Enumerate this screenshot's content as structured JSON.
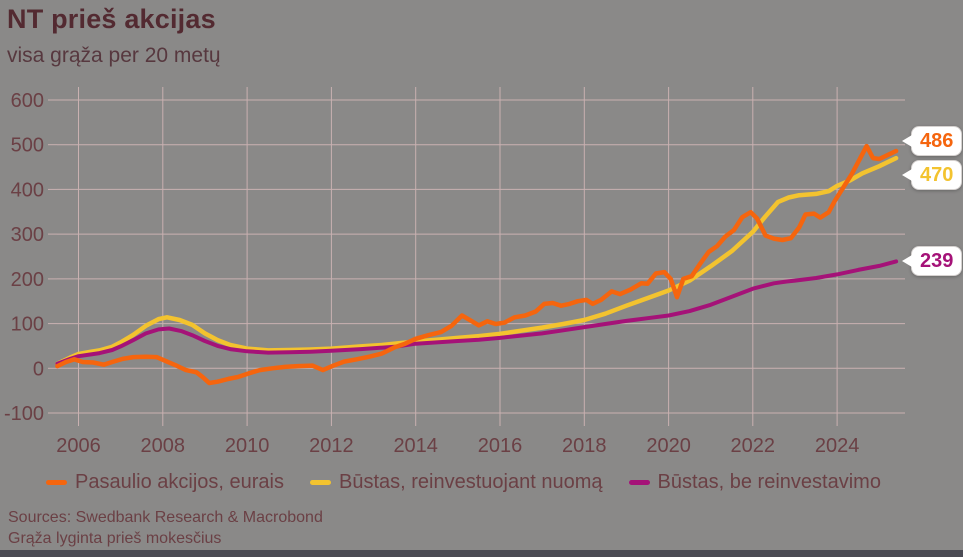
{
  "header": {
    "title": "NT prieš akcijas",
    "subtitle": "visa grąža per 20 metų"
  },
  "colors": {
    "background": "#8a8988",
    "grid": "#c9b1b1",
    "title_text": "#532a31",
    "subtitle_text": "#57383f",
    "axis_text": "#6b4045",
    "footer_bar": "#4b4b54",
    "bubble_bg": "#ffffff",
    "bubble_border": "#d6d2d0",
    "series_equities": "#f5650e",
    "series_housing_reinvest": "#f3c32f",
    "series_housing_no_reinvest": "#a51278"
  },
  "chart_data": {
    "type": "line",
    "title": "NT prieš akcijas",
    "subtitle": "visa grąža per 20 metų",
    "xlabel": "",
    "ylabel": "",
    "xlim": [
      2005.49,
      2025.61
    ],
    "ylim": [
      -100,
      600
    ],
    "x_ticks": [
      2006,
      2008,
      2010,
      2012,
      2014,
      2016,
      2018,
      2020,
      2022,
      2024
    ],
    "y_ticks": [
      -100,
      0,
      100,
      200,
      300,
      400,
      500,
      600
    ],
    "grid": true,
    "legend_position": "bottom",
    "series": [
      {
        "name": "Pasaulio akcijos, eurais",
        "color_key": "series_equities",
        "end_label": "486",
        "points": [
          [
            2005.5,
            5
          ],
          [
            2005.7,
            14
          ],
          [
            2005.9,
            20
          ],
          [
            2006.1,
            14
          ],
          [
            2006.35,
            13
          ],
          [
            2006.6,
            8
          ],
          [
            2006.8,
            14
          ],
          [
            2007.05,
            21
          ],
          [
            2007.3,
            25
          ],
          [
            2007.6,
            26
          ],
          [
            2007.85,
            25
          ],
          [
            2008.1,
            15
          ],
          [
            2008.35,
            5
          ],
          [
            2008.55,
            -4
          ],
          [
            2008.8,
            -9
          ],
          [
            2008.95,
            -20
          ],
          [
            2009.1,
            -33
          ],
          [
            2009.3,
            -30
          ],
          [
            2009.55,
            -24
          ],
          [
            2009.8,
            -19
          ],
          [
            2010.05,
            -11
          ],
          [
            2010.3,
            -4
          ],
          [
            2010.6,
            0
          ],
          [
            2010.9,
            3
          ],
          [
            2011.2,
            5
          ],
          [
            2011.55,
            6
          ],
          [
            2011.8,
            -4
          ],
          [
            2012.05,
            6
          ],
          [
            2012.3,
            15
          ],
          [
            2012.6,
            20
          ],
          [
            2012.9,
            26
          ],
          [
            2013.2,
            33
          ],
          [
            2013.5,
            47
          ],
          [
            2013.75,
            55
          ],
          [
            2014.0,
            66
          ],
          [
            2014.3,
            74
          ],
          [
            2014.6,
            81
          ],
          [
            2014.85,
            95
          ],
          [
            2015.1,
            118
          ],
          [
            2015.3,
            107
          ],
          [
            2015.5,
            96
          ],
          [
            2015.7,
            105
          ],
          [
            2015.9,
            99
          ],
          [
            2016.1,
            102
          ],
          [
            2016.35,
            114
          ],
          [
            2016.6,
            118
          ],
          [
            2016.85,
            127
          ],
          [
            2017.05,
            144
          ],
          [
            2017.25,
            146
          ],
          [
            2017.45,
            140
          ],
          [
            2017.65,
            144
          ],
          [
            2017.85,
            150
          ],
          [
            2018.05,
            153
          ],
          [
            2018.2,
            144
          ],
          [
            2018.4,
            153
          ],
          [
            2018.65,
            172
          ],
          [
            2018.85,
            166
          ],
          [
            2019.1,
            176
          ],
          [
            2019.35,
            190
          ],
          [
            2019.5,
            189
          ],
          [
            2019.7,
            212
          ],
          [
            2019.9,
            215
          ],
          [
            2020.05,
            200
          ],
          [
            2020.2,
            159
          ],
          [
            2020.35,
            200
          ],
          [
            2020.55,
            206
          ],
          [
            2020.75,
            234
          ],
          [
            2020.95,
            260
          ],
          [
            2021.15,
            273
          ],
          [
            2021.35,
            295
          ],
          [
            2021.55,
            309
          ],
          [
            2021.75,
            338
          ],
          [
            2021.95,
            349
          ],
          [
            2022.1,
            335
          ],
          [
            2022.3,
            297
          ],
          [
            2022.5,
            290
          ],
          [
            2022.7,
            287
          ],
          [
            2022.9,
            291
          ],
          [
            2023.1,
            315
          ],
          [
            2023.25,
            344
          ],
          [
            2023.45,
            346
          ],
          [
            2023.6,
            337
          ],
          [
            2023.8,
            349
          ],
          [
            2023.95,
            375
          ],
          [
            2024.15,
            405
          ],
          [
            2024.35,
            435
          ],
          [
            2024.55,
            470
          ],
          [
            2024.7,
            497
          ],
          [
            2024.85,
            470
          ],
          [
            2025.0,
            468
          ],
          [
            2025.2,
            477
          ],
          [
            2025.4,
            486
          ]
        ]
      },
      {
        "name": "Būstas, reinvestuojant nuomą",
        "color_key": "series_housing_reinvest",
        "end_label": "470",
        "points": [
          [
            2005.5,
            10
          ],
          [
            2005.8,
            24
          ],
          [
            2006.0,
            32
          ],
          [
            2006.3,
            37
          ],
          [
            2006.5,
            40
          ],
          [
            2006.8,
            48
          ],
          [
            2007.0,
            58
          ],
          [
            2007.3,
            75
          ],
          [
            2007.6,
            95
          ],
          [
            2007.9,
            110
          ],
          [
            2008.1,
            114
          ],
          [
            2008.4,
            108
          ],
          [
            2008.7,
            97
          ],
          [
            2009.0,
            78
          ],
          [
            2009.3,
            63
          ],
          [
            2009.6,
            52
          ],
          [
            2010.0,
            44
          ],
          [
            2010.5,
            40
          ],
          [
            2011.0,
            41
          ],
          [
            2011.5,
            42
          ],
          [
            2012.0,
            44
          ],
          [
            2012.7,
            49
          ],
          [
            2013.2,
            52
          ],
          [
            2013.6,
            56
          ],
          [
            2014.0,
            60
          ],
          [
            2014.5,
            64
          ],
          [
            2015.0,
            68
          ],
          [
            2015.5,
            72
          ],
          [
            2016.0,
            77
          ],
          [
            2016.5,
            84
          ],
          [
            2017.0,
            91
          ],
          [
            2017.5,
            99
          ],
          [
            2018.0,
            108
          ],
          [
            2018.5,
            122
          ],
          [
            2019.0,
            140
          ],
          [
            2019.5,
            157
          ],
          [
            2020.0,
            174
          ],
          [
            2020.5,
            196
          ],
          [
            2021.0,
            228
          ],
          [
            2021.5,
            262
          ],
          [
            2022.0,
            305
          ],
          [
            2022.3,
            340
          ],
          [
            2022.6,
            372
          ],
          [
            2022.85,
            382
          ],
          [
            2023.1,
            387
          ],
          [
            2023.5,
            390
          ],
          [
            2023.8,
            396
          ],
          [
            2024.0,
            408
          ],
          [
            2024.3,
            420
          ],
          [
            2024.6,
            436
          ],
          [
            2025.0,
            452
          ],
          [
            2025.4,
            470
          ]
        ]
      },
      {
        "name": "Būstas, be reinvestavimo",
        "color_key": "series_housing_no_reinvest",
        "end_label": "239",
        "points": [
          [
            2005.5,
            10
          ],
          [
            2005.8,
            21
          ],
          [
            2006.0,
            27
          ],
          [
            2006.3,
            31
          ],
          [
            2006.5,
            34
          ],
          [
            2006.8,
            41
          ],
          [
            2007.0,
            49
          ],
          [
            2007.3,
            63
          ],
          [
            2007.6,
            78
          ],
          [
            2007.9,
            87
          ],
          [
            2008.15,
            89
          ],
          [
            2008.45,
            83
          ],
          [
            2008.7,
            74
          ],
          [
            2009.0,
            61
          ],
          [
            2009.3,
            50
          ],
          [
            2009.6,
            43
          ],
          [
            2010.0,
            38
          ],
          [
            2010.5,
            35
          ],
          [
            2011.0,
            36
          ],
          [
            2011.5,
            37
          ],
          [
            2012.0,
            39
          ],
          [
            2012.7,
            43
          ],
          [
            2013.5,
            48
          ],
          [
            2014.0,
            55
          ],
          [
            2014.5,
            58
          ],
          [
            2015.0,
            61
          ],
          [
            2015.5,
            64
          ],
          [
            2016.0,
            68
          ],
          [
            2016.5,
            73
          ],
          [
            2017.0,
            78
          ],
          [
            2017.5,
            85
          ],
          [
            2018.0,
            92
          ],
          [
            2018.5,
            99
          ],
          [
            2019.0,
            106
          ],
          [
            2019.5,
            112
          ],
          [
            2020.0,
            118
          ],
          [
            2020.5,
            128
          ],
          [
            2021.0,
            142
          ],
          [
            2021.5,
            160
          ],
          [
            2022.0,
            178
          ],
          [
            2022.5,
            190
          ],
          [
            2022.8,
            194
          ],
          [
            2023.0,
            196
          ],
          [
            2023.5,
            202
          ],
          [
            2024.0,
            210
          ],
          [
            2024.5,
            220
          ],
          [
            2025.0,
            229
          ],
          [
            2025.4,
            239
          ]
        ]
      }
    ]
  },
  "footer": {
    "line1": "Sources: Swedbank Research & Macrobond",
    "line2": "Grąža lyginta prieš mokesčius"
  }
}
